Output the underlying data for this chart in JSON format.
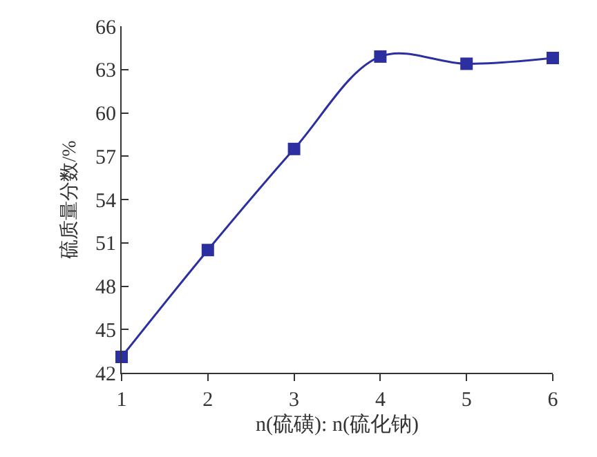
{
  "chart_data": {
    "type": "line",
    "xlabel": "n(硫磺): n(硫化钠)",
    "ylabel": "硫质量分数/%",
    "x": [
      1,
      2,
      3,
      4,
      5,
      6
    ],
    "series": [
      {
        "color": "#2b2fa0",
        "values": [
          43.1,
          50.5,
          57.5,
          63.9,
          63.4,
          63.8
        ]
      }
    ],
    "xlim": [
      1,
      6
    ],
    "xticks": [
      1,
      2,
      3,
      4,
      5,
      6
    ],
    "ylim": [
      42,
      66
    ],
    "yticks": [
      42,
      45,
      48,
      51,
      54,
      57,
      60,
      63,
      66
    ],
    "grid": false,
    "marker": "square",
    "line_style": "solid"
  }
}
